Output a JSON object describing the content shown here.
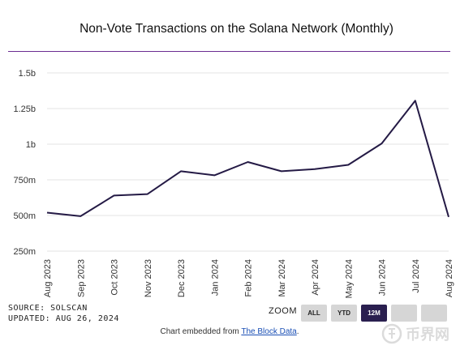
{
  "title": "Non-Vote Transactions on the Solana Network (Monthly)",
  "source_line": "SOURCE: SOLSCAN",
  "updated_line": "UPDATED: AUG 26, 2024",
  "zoom": {
    "label": "ZOOM",
    "buttons": [
      {
        "label": "ALL",
        "active": false
      },
      {
        "label": "YTD",
        "active": false
      },
      {
        "label": "12M",
        "active": true
      },
      {
        "label": "",
        "active": false
      },
      {
        "label": "",
        "active": false
      }
    ]
  },
  "credit": {
    "prefix": "Chart embedded from ",
    "link": "The Block Data",
    "suffix": "."
  },
  "watermark": {
    "text": "币界网"
  },
  "colors": {
    "line": "#241a45",
    "rule": "#6b2c91",
    "grid": "#e3e3e3",
    "active_button": "#2a1f4f"
  },
  "chart_data": {
    "type": "line",
    "title": "Non-Vote Transactions on the Solana Network (Monthly)",
    "categories": [
      "Aug 2023",
      "Sep 2023",
      "Oct 2023",
      "Nov 2023",
      "Dec 2023",
      "Jan 2024",
      "Feb 2024",
      "Mar 2024",
      "Apr 2024",
      "May 2024",
      "Jun 2024",
      "Jul 2024",
      "Aug 2024"
    ],
    "series": [
      {
        "values": [
          520000000,
          495000000,
          640000000,
          650000000,
          810000000,
          782000000,
          875000000,
          810000000,
          825000000,
          855000000,
          1005000000,
          1305000000,
          490000000
        ]
      }
    ],
    "ylim": [
      250000000,
      1500000000
    ],
    "yticks": [
      250000000,
      500000000,
      750000000,
      1000000000,
      1250000000,
      1500000000
    ],
    "ytick_labels": [
      "250m",
      "500m",
      "750m",
      "1b",
      "1.25b",
      "1.5b"
    ],
    "grid": true,
    "legend": "none"
  }
}
